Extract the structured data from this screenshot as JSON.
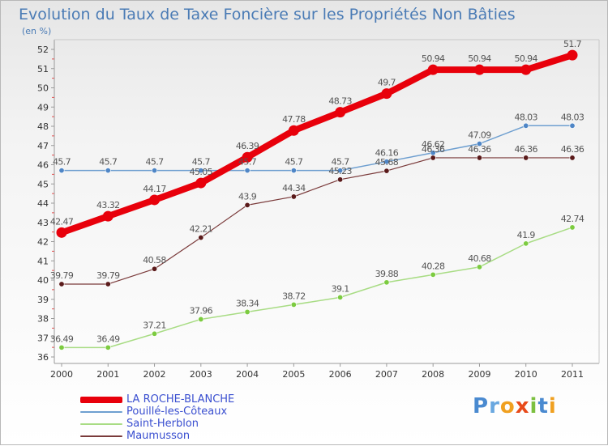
{
  "title": "Evolution du Taux de Taxe Foncière sur les Propriétés Non Bâties",
  "subtitle": "(en %)",
  "logo": "Proxiti",
  "chart_data": {
    "type": "line",
    "title": "Evolution du Taux de Taxe Foncière sur les Propriétés Non Bâties",
    "ylabel": "(en %)",
    "categories": [
      "2000",
      "2001",
      "2002",
      "2003",
      "2004",
      "2005",
      "2006",
      "2007",
      "2008",
      "2009",
      "2010",
      "2011"
    ],
    "ylim": [
      36,
      52
    ],
    "yticks": [
      "36",
      "37",
      "38",
      "39",
      "40",
      "41",
      "42",
      "43",
      "44",
      "45",
      "46",
      "47",
      "48",
      "49",
      "50",
      "51",
      "52"
    ],
    "grid": false,
    "legend_position": "bottom-left",
    "series": [
      {
        "name": "LA ROCHE-BLANCHE",
        "color": "#e8000b",
        "point_color": "#e8000b",
        "width": 8,
        "point_radius": 6.5,
        "values": [
          42.47,
          43.32,
          44.17,
          45.05,
          46.39,
          47.78,
          48.73,
          49.7,
          50.94,
          50.94,
          50.94,
          51.7
        ],
        "labels": [
          "42.47",
          "43.32",
          "44.17",
          "45.05",
          "46.39",
          "47.78",
          "48.73",
          "49.7",
          "50.94",
          "50.94",
          "50.94",
          "51.7"
        ]
      },
      {
        "name": "Pouillé-les-Côteaux",
        "color": "#6e9fd0",
        "point_color": "#4f86c6",
        "width": 1.5,
        "point_radius": 3.2,
        "values": [
          45.7,
          45.7,
          45.7,
          45.7,
          45.7,
          45.7,
          45.7,
          46.16,
          46.62,
          47.09,
          48.03,
          48.03
        ],
        "labels": [
          "45.7",
          "45.7",
          "45.7",
          "45.7",
          "45.7",
          "45.7",
          "45.7",
          "46.16",
          "46.62",
          "47.09",
          "48.03",
          "48.03"
        ]
      },
      {
        "name": "Saint-Herblon",
        "color": "#a8dc84",
        "point_color": "#7ccb40",
        "width": 1.5,
        "point_radius": 3.2,
        "values": [
          36.49,
          36.49,
          37.21,
          37.96,
          38.34,
          38.72,
          39.1,
          39.88,
          40.28,
          40.68,
          41.9,
          42.74
        ],
        "labels": [
          "36.49",
          "36.49",
          "37.21",
          "37.96",
          "38.34",
          "38.72",
          "39.1",
          "39.88",
          "40.28",
          "40.68",
          "41.9",
          "42.74"
        ]
      },
      {
        "name": "Maumusson",
        "color": "#7a3a3a",
        "point_color": "#5a1a1a",
        "width": 1.2,
        "point_radius": 3.2,
        "values": [
          39.79,
          39.79,
          40.58,
          42.21,
          43.9,
          44.34,
          45.23,
          45.68,
          46.36,
          46.36,
          46.36,
          46.36
        ],
        "labels": [
          "39.79",
          "39.79",
          "40.58",
          "42.21",
          "43.9",
          "44.34",
          "45.23",
          "45.68",
          "46.36",
          "46.36",
          "46.36",
          "46.36"
        ]
      }
    ]
  }
}
